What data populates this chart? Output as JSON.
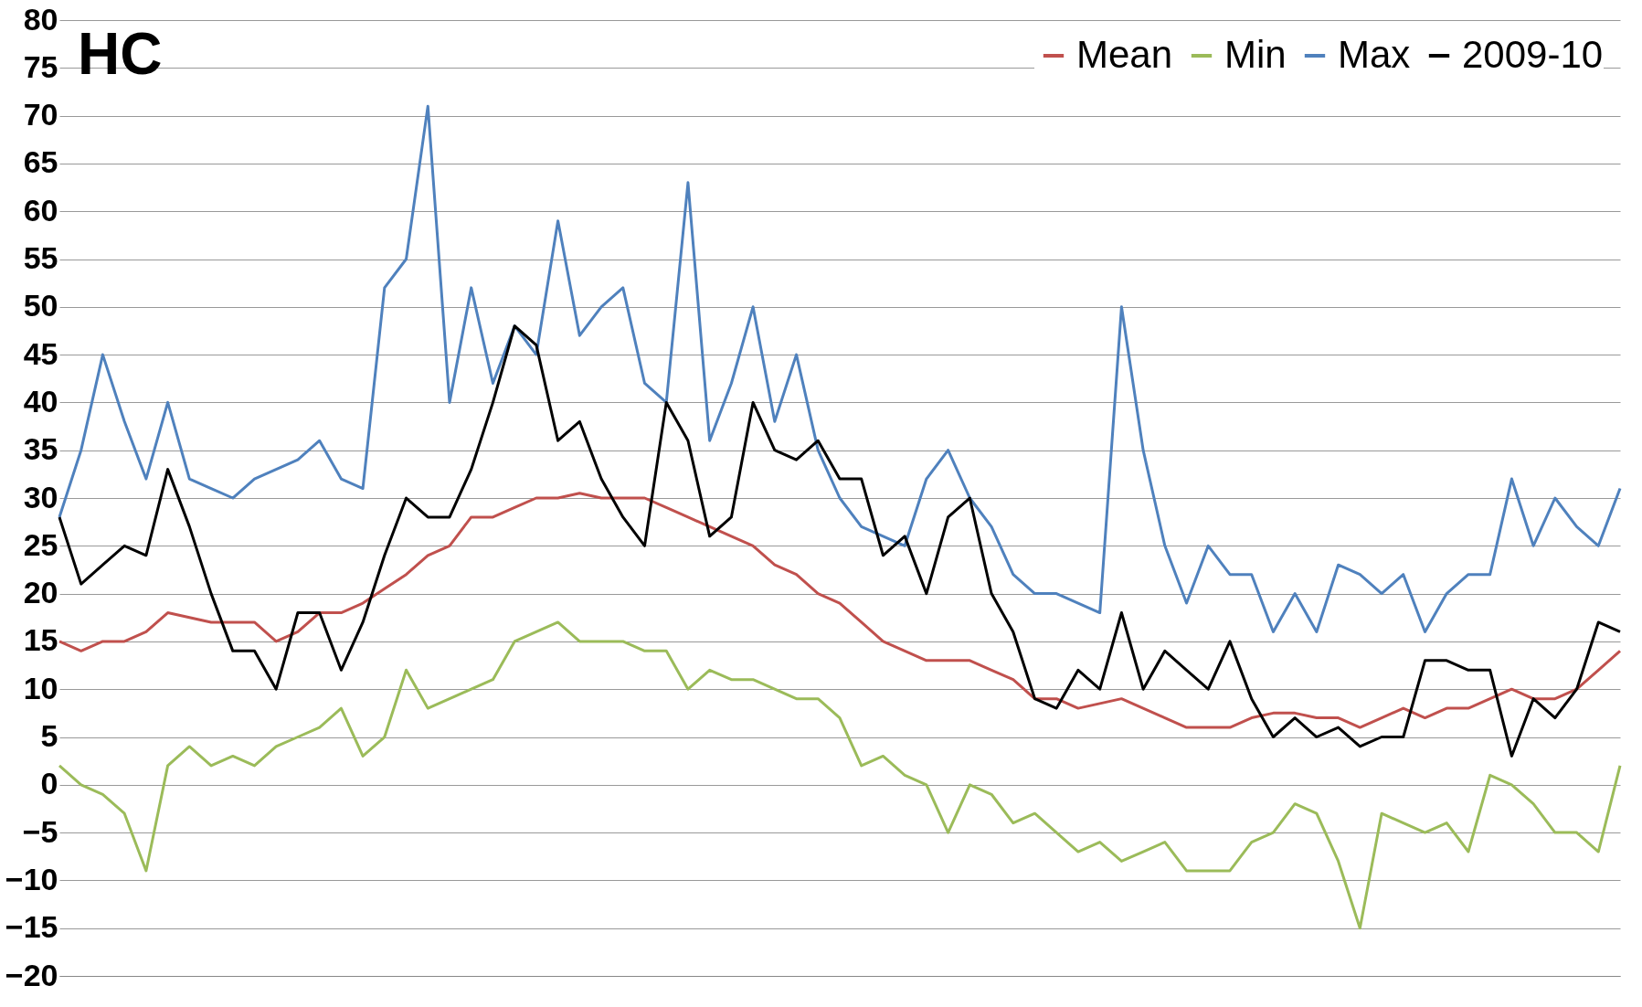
{
  "chart_data": {
    "type": "line",
    "title": "HC",
    "categories": [
      null,
      null,
      null,
      null,
      null,
      null,
      null,
      null,
      null,
      null,
      null,
      null,
      null,
      null,
      null,
      null,
      null,
      null,
      null,
      null,
      null,
      null,
      null,
      null,
      null,
      null,
      null,
      null,
      null,
      null,
      null,
      null,
      null,
      null,
      null,
      null,
      null,
      null,
      null,
      null,
      null,
      null,
      null,
      null,
      null,
      null,
      null,
      null,
      null,
      null,
      null,
      null,
      null,
      null,
      null,
      null,
      null,
      null,
      null,
      null,
      null,
      null,
      null,
      null,
      null,
      null,
      null,
      null,
      null,
      null,
      null,
      null,
      null
    ],
    "series": [
      {
        "name": "Mean",
        "color": "#c0504d",
        "values": [
          15,
          14,
          15,
          15,
          16,
          18,
          17.5,
          17,
          17,
          17,
          15,
          16,
          18,
          18,
          19,
          20.5,
          22,
          24,
          25,
          28,
          28,
          29,
          30,
          30,
          30.5,
          30,
          30,
          30,
          29,
          28,
          27,
          26,
          25,
          23,
          22,
          20,
          19,
          17,
          15,
          14,
          13,
          13,
          13,
          12,
          11,
          9,
          9,
          8,
          8.5,
          9,
          8,
          7,
          6,
          6,
          6,
          7,
          7.5,
          7.5,
          7,
          7,
          6,
          7,
          8,
          7,
          8,
          8,
          9,
          10,
          9,
          9,
          10,
          12,
          14
        ]
      },
      {
        "name": "Min",
        "color": "#9bbb59",
        "values": [
          2,
          0,
          -1,
          -3,
          -9,
          2,
          4,
          2,
          3,
          2,
          4,
          5,
          6,
          8,
          3,
          5,
          12,
          8,
          9,
          10,
          11,
          15,
          16,
          17,
          15,
          15,
          15,
          14,
          14,
          10,
          12,
          11,
          11,
          10,
          9,
          9,
          7,
          2,
          3,
          1,
          0,
          -5,
          0,
          -1,
          -4,
          -3,
          -5,
          -7,
          -6,
          -8,
          -7,
          -6,
          -9,
          -9,
          -9,
          -6,
          -5,
          -2,
          -3,
          -8,
          -15,
          -3,
          -4,
          -5,
          -4,
          -7,
          1,
          0,
          -2,
          -5,
          -5,
          -7,
          2
        ]
      },
      {
        "name": "Max",
        "color": "#4f81bd",
        "values": [
          28,
          35,
          45,
          38,
          32,
          40,
          32,
          31,
          30,
          32,
          33,
          34,
          36,
          32,
          31,
          52,
          55,
          71,
          40,
          52,
          42,
          48,
          45,
          59,
          47,
          50,
          52,
          42,
          40,
          63,
          36,
          42,
          50,
          38,
          45,
          35,
          30,
          27,
          26,
          25,
          32,
          35,
          30,
          27,
          22,
          20,
          20,
          19,
          18,
          50,
          35,
          25,
          19,
          25,
          22,
          22,
          16,
          20,
          16,
          23,
          22,
          20,
          22,
          16,
          20,
          22,
          22,
          32,
          25,
          30,
          27,
          25,
          31
        ]
      },
      {
        "name": "2009-10",
        "color": "#000000",
        "values": [
          28,
          21,
          23,
          25,
          24,
          33,
          27,
          20,
          14,
          14,
          10,
          18,
          18,
          12,
          17,
          24,
          30,
          28,
          28,
          33,
          40,
          48,
          46,
          36,
          38,
          32,
          28,
          25,
          40,
          36,
          26,
          28,
          40,
          35,
          34,
          36,
          32,
          32,
          24,
          26,
          20,
          28,
          30,
          20,
          16,
          9,
          8,
          12,
          10,
          18,
          10,
          14,
          12,
          10,
          15,
          9,
          5,
          7,
          5,
          6,
          4,
          5,
          5,
          13,
          13,
          12,
          12,
          3,
          9,
          7,
          10,
          17,
          16
        ]
      }
    ],
    "ylim": [
      -20,
      80
    ],
    "yticks": [
      -20,
      -15,
      -10,
      -5,
      0,
      5,
      10,
      15,
      20,
      25,
      30,
      35,
      40,
      45,
      50,
      55,
      60,
      65,
      70,
      75,
      80
    ],
    "grid": "y",
    "legend": "top right",
    "tick_labels": "y",
    "marker": "none",
    "line_style": "solid"
  }
}
